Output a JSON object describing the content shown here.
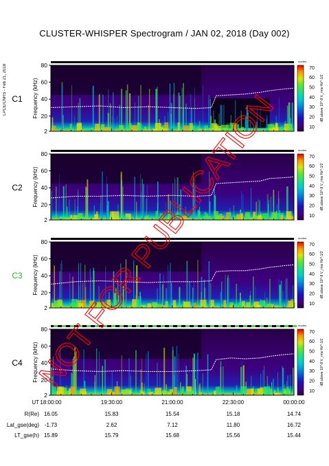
{
  "title": "CLUSTER-WHISPER Spectrogram / JAN 02, 2018 (Day 002)",
  "side_label": "LPCE/CNRS - Feb 21, 2018",
  "watermark_text": "NOT FOR PUBLICATION",
  "colors": {
    "text": "#000000",
    "c3_label": "#20c020",
    "watermark": "#ff0000",
    "spectrum_background": "#3a006a",
    "plasma_line": "#ffffff"
  },
  "chart_data": {
    "type": "heatmap",
    "title": "CLUSTER-WHISPER Spectrogram / JAN 02, 2018 (Day 002)",
    "xlabel": "UT",
    "ylabel": "Frequency (kHz)",
    "zlabel": "dB above 10^-8 V_rms Hz^-1/2",
    "x_tick_labels": [
      "18:00:00",
      "19:30:00",
      "21:00:00",
      "22:30:00",
      "00:00:00"
    ],
    "y_ticks": [
      2,
      20,
      40,
      60,
      80
    ],
    "ylim": [
      2,
      80
    ],
    "colorbar_ticks": [
      10,
      20,
      30,
      40,
      50,
      60,
      70
    ],
    "colorbar_range": [
      5,
      72
    ],
    "mode_label": "modes",
    "panels": [
      {
        "name": "C1",
        "label_color": "#000000",
        "plasma_line": [
          [
            0,
            30
          ],
          [
            0.1,
            31
          ],
          [
            0.2,
            32
          ],
          [
            0.3,
            30
          ],
          [
            0.4,
            31
          ],
          [
            0.5,
            30
          ],
          [
            0.6,
            29
          ],
          [
            0.66,
            30
          ],
          [
            0.68,
            44
          ],
          [
            0.74,
            45
          ],
          [
            0.8,
            46
          ],
          [
            0.86,
            48
          ],
          [
            0.9,
            50
          ],
          [
            0.96,
            52
          ],
          [
            1.0,
            53
          ]
        ]
      },
      {
        "name": "C2",
        "label_color": "#000000",
        "plasma_line": [
          [
            0,
            28
          ],
          [
            0.1,
            30
          ],
          [
            0.2,
            30
          ],
          [
            0.3,
            31
          ],
          [
            0.4,
            30
          ],
          [
            0.5,
            31
          ],
          [
            0.6,
            30
          ],
          [
            0.66,
            31
          ],
          [
            0.68,
            45
          ],
          [
            0.74,
            46
          ],
          [
            0.8,
            47
          ],
          [
            0.86,
            48
          ],
          [
            0.9,
            51
          ],
          [
            0.96,
            52
          ],
          [
            1.0,
            53
          ]
        ]
      },
      {
        "name": "C3",
        "label_color": "#20c020",
        "plasma_line": [
          [
            0,
            30
          ],
          [
            0.1,
            33
          ],
          [
            0.2,
            34
          ],
          [
            0.3,
            33
          ],
          [
            0.4,
            32
          ],
          [
            0.5,
            33
          ],
          [
            0.6,
            33
          ],
          [
            0.66,
            34
          ],
          [
            0.68,
            45
          ],
          [
            0.74,
            46
          ],
          [
            0.8,
            46
          ],
          [
            0.86,
            48
          ],
          [
            0.9,
            50
          ],
          [
            0.96,
            52
          ],
          [
            1.0,
            53
          ]
        ]
      },
      {
        "name": "C4",
        "label_color": "#000000",
        "plasma_line": [
          [
            0,
            33
          ],
          [
            0.1,
            31
          ],
          [
            0.2,
            30
          ],
          [
            0.3,
            31
          ],
          [
            0.4,
            30
          ],
          [
            0.5,
            30
          ],
          [
            0.6,
            31
          ],
          [
            0.66,
            32
          ],
          [
            0.68,
            44
          ],
          [
            0.74,
            46
          ],
          [
            0.8,
            45
          ],
          [
            0.86,
            46
          ],
          [
            0.9,
            48
          ],
          [
            0.96,
            50
          ],
          [
            1.0,
            51
          ]
        ]
      }
    ],
    "orbit_table": {
      "rows": [
        {
          "label": "UT",
          "values": [
            "18:00:00",
            "19:30:00",
            "21:00:00",
            "22:30:00",
            "00:00:00"
          ]
        },
        {
          "label": "R(Re)",
          "values": [
            "16.05",
            "15.83",
            "15.54",
            "15.18",
            "14.74"
          ]
        },
        {
          "label": "Lat_gse(deg)",
          "values": [
            "-1.73",
            "2.62",
            "7.12",
            "11.80",
            "16.72"
          ]
        },
        {
          "label": "LT_gse(h)",
          "values": [
            "15.89",
            "15.79",
            "15.68",
            "15.56",
            "15.44"
          ]
        }
      ]
    }
  }
}
